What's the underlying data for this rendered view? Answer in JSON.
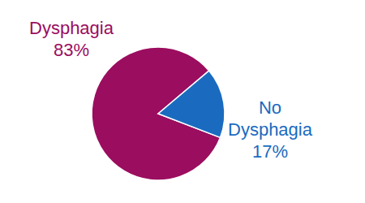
{
  "chart_data": {
    "type": "pie",
    "categories": [
      "Dysphagia",
      "No Dysphagia"
    ],
    "values": [
      83,
      17
    ],
    "value_labels": [
      "83%",
      "17%"
    ],
    "colors": [
      "#9b0d5f",
      "#1a6bbf"
    ],
    "data_labels": true
  }
}
